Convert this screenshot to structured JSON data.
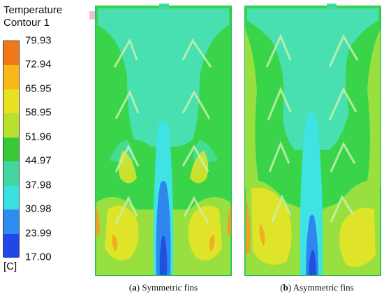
{
  "legend": {
    "title": "Temperature",
    "subtitle": "Contour 1",
    "unit": "[C]",
    "ticks": [
      "79.93",
      "72.94",
      "65.95",
      "58.95",
      "51.96",
      "44.97",
      "37.98",
      "30.98",
      "23.99",
      "17.00"
    ],
    "band_colors": [
      "#f07818",
      "#f8b818",
      "#e8e020",
      "#b8e030",
      "#38c838",
      "#40d8a0",
      "#38e0e0",
      "#2c8cf0",
      "#2048e8"
    ]
  },
  "panels": [
    {
      "letter": "a",
      "caption": "Symmetric fins"
    },
    {
      "letter": "b",
      "caption": "Asymmetric fins"
    }
  ],
  "colors": {
    "cyan_green": "#48e0b0",
    "green": "#3ad44a",
    "light_green": "#98e040",
    "yellow": "#e0e428",
    "cyan": "#3fe3e3",
    "blue": "#2f86ee",
    "deep_blue": "#2050e0",
    "orange": "#f0a020",
    "fin": "#c8f0b0"
  }
}
